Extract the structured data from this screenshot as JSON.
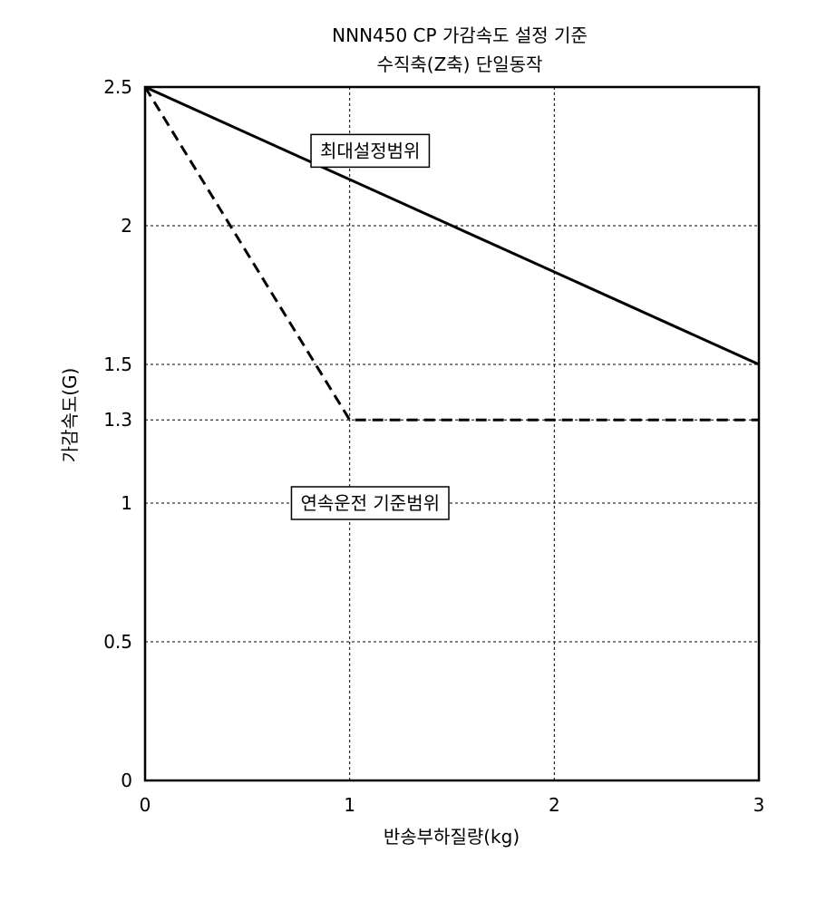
{
  "chart_data": {
    "type": "line",
    "title": "NNN450 CP 가감속도 설정 기준",
    "subtitle": "수직축(Z축) 단일동작",
    "xlabel": "반송부하질량(kg)",
    "ylabel": "가감속도(G)",
    "xlim": [
      0,
      3
    ],
    "ylim": [
      0,
      2.5
    ],
    "x_ticks": [
      0,
      1,
      2,
      3
    ],
    "x_tick_labels": [
      "0",
      "1",
      "2",
      "3"
    ],
    "y_ticks": [
      0,
      0.5,
      1,
      1.3,
      1.5,
      2,
      2.5
    ],
    "y_tick_labels": [
      "0",
      "0.5",
      "1",
      "1.3",
      "1.5",
      "2",
      "2.5"
    ],
    "grid": true,
    "series": [
      {
        "style": "solid",
        "x": [
          0,
          3
        ],
        "y": [
          2.5,
          1.5
        ]
      },
      {
        "style": "dashed",
        "x": [
          0,
          1,
          3
        ],
        "y": [
          2.5,
          1.3,
          1.3
        ]
      }
    ],
    "annotations": [
      {
        "text": "최대설정범위",
        "x": 1.1,
        "y": 2.27
      },
      {
        "text": "연속운전 기준범위",
        "x": 1.1,
        "y": 1.0
      }
    ]
  }
}
